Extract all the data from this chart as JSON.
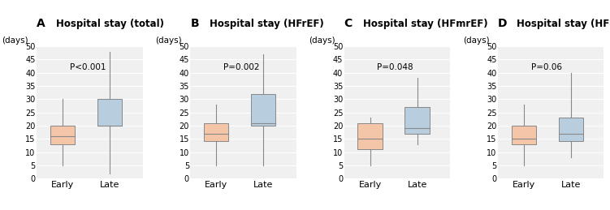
{
  "panels": [
    {
      "label": "A",
      "title": "Hospital stay (total)",
      "p_value": "P<0.001",
      "early": {
        "q1": 13,
        "median": 16,
        "q3": 20,
        "whisker_low": 5,
        "whisker_high": 30
      },
      "late": {
        "q1": 20,
        "median": 20,
        "q3": 30,
        "whisker_low": 2,
        "whisker_high": 48
      }
    },
    {
      "label": "B",
      "title": "Hospital stay (HFrEF)",
      "p_value": "P=0.002",
      "early": {
        "q1": 14,
        "median": 17,
        "q3": 21,
        "whisker_low": 5,
        "whisker_high": 28
      },
      "late": {
        "q1": 20,
        "median": 21,
        "q3": 32,
        "whisker_low": 5,
        "whisker_high": 47
      }
    },
    {
      "label": "C",
      "title": "Hospital stay (HFmrEF)",
      "p_value": "P=0.048",
      "early": {
        "q1": 11,
        "median": 15,
        "q3": 21,
        "whisker_low": 5,
        "whisker_high": 23
      },
      "late": {
        "q1": 17,
        "median": 19,
        "q3": 27,
        "whisker_low": 13,
        "whisker_high": 38
      }
    },
    {
      "label": "D",
      "title": "Hospital stay (HFpEF)",
      "p_value": "P=0.06",
      "early": {
        "q1": 13,
        "median": 15,
        "q3": 20,
        "whisker_low": 5,
        "whisker_high": 28
      },
      "late": {
        "q1": 14,
        "median": 17,
        "q3": 23,
        "whisker_low": 8,
        "whisker_high": 40
      }
    }
  ],
  "ylim": [
    0,
    50
  ],
  "yticks": [
    0,
    5,
    10,
    15,
    20,
    25,
    30,
    35,
    40,
    45,
    50
  ],
  "ylabel": "(days)",
  "color_early": "#F5C5A8",
  "color_late": "#B8CEDF",
  "edge_color": "#888888",
  "median_color": "#888888",
  "whisker_color": "#888888",
  "bg_color": "#F0F0F0"
}
